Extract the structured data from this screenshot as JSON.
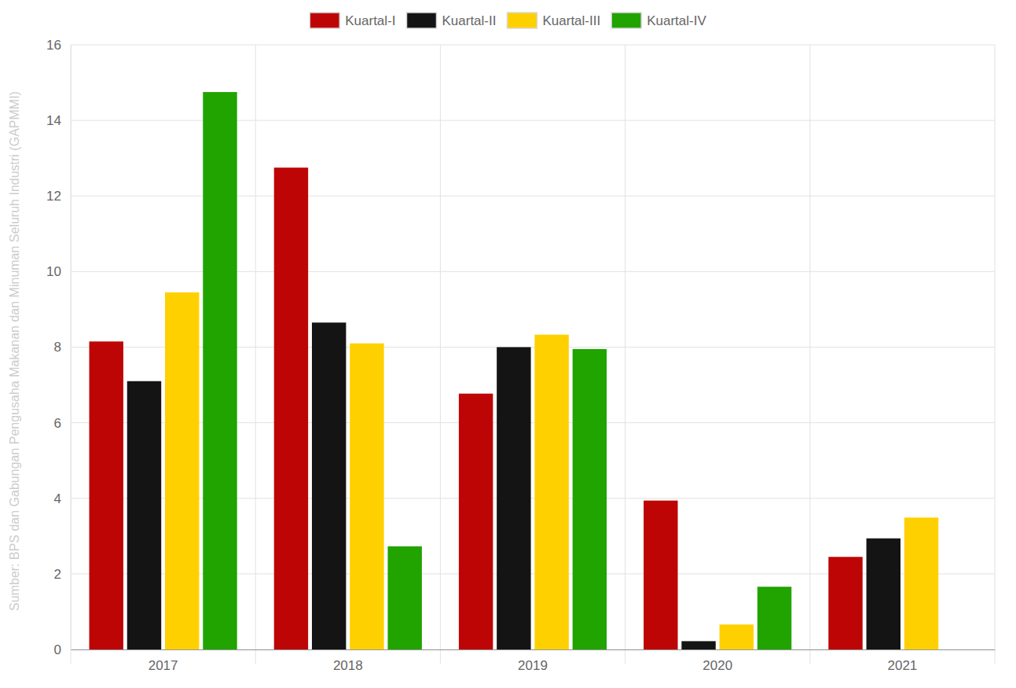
{
  "chart_data": {
    "type": "bar",
    "categories": [
      "2017",
      "2018",
      "2019",
      "2020",
      "2021"
    ],
    "series": [
      {
        "name": "Kuartal-I",
        "color": "#be0505",
        "values": [
          8.15,
          12.75,
          6.77,
          3.94,
          2.45
        ]
      },
      {
        "name": "Kuartal-II",
        "color": "#141414",
        "values": [
          7.1,
          8.65,
          8.0,
          0.22,
          2.94
        ]
      },
      {
        "name": "Kuartal-III",
        "color": "#ffd000",
        "values": [
          9.45,
          8.1,
          8.33,
          0.66,
          3.49
        ]
      },
      {
        "name": "Kuartal-IV",
        "color": "#21a300",
        "values": [
          14.75,
          2.73,
          7.95,
          1.66,
          null
        ]
      }
    ],
    "ylim": [
      0,
      16
    ],
    "yticks": [
      0,
      2,
      4,
      6,
      8,
      10,
      12,
      14,
      16
    ],
    "grid": true,
    "legend": "top",
    "annotations": [
      "Sumber: BPS dan Gabungan Pengusaha Makanan dan Minuman Seluruh Industri (GAPMMI)"
    ]
  }
}
